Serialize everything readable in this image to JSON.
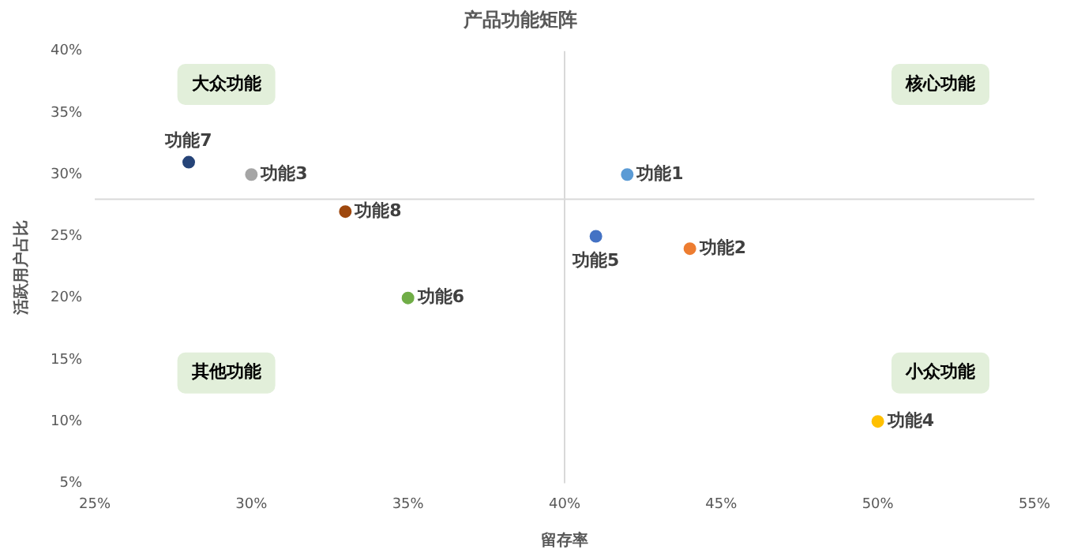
{
  "chart_data": {
    "type": "scatter",
    "title": "产品功能矩阵",
    "xlabel": "留存率",
    "ylabel": "活跃用户占比",
    "xlim": [
      25,
      55
    ],
    "xticks": [
      {
        "value": 25,
        "label": "25%"
      },
      {
        "value": 30,
        "label": "30%"
      },
      {
        "value": 35,
        "label": "35%"
      },
      {
        "value": 40,
        "label": "40%"
      },
      {
        "value": 45,
        "label": "45%"
      },
      {
        "value": 50,
        "label": "50%"
      },
      {
        "value": 55,
        "label": "55%"
      }
    ],
    "ylim": [
      5,
      40
    ],
    "yticks": [
      {
        "value": 5,
        "label": "5%"
      },
      {
        "value": 10,
        "label": "10%"
      },
      {
        "value": 15,
        "label": "15%"
      },
      {
        "value": 20,
        "label": "20%"
      },
      {
        "value": 25,
        "label": "25%"
      },
      {
        "value": 30,
        "label": "30%"
      },
      {
        "value": 35,
        "label": "35%"
      },
      {
        "value": 40,
        "label": "40%"
      }
    ],
    "grid": false,
    "legend": false,
    "marker": "circle",
    "ref_lines": [
      {
        "axis": "x",
        "value": 40,
        "color": "#d9d9d9"
      },
      {
        "axis": "y",
        "value": 28,
        "color": "#d9d9d9"
      }
    ],
    "annotations": [
      "大众功能",
      "核心功能",
      "其他功能",
      "小众功能"
    ],
    "series": [
      {
        "name": "功能1",
        "color": "#5b9bd5",
        "x": [
          42
        ],
        "values": [
          30
        ]
      },
      {
        "name": "功能2",
        "color": "#ed7d31",
        "x": [
          44
        ],
        "values": [
          24
        ]
      },
      {
        "name": "功能3",
        "color": "#a5a5a5",
        "x": [
          30
        ],
        "values": [
          30
        ]
      },
      {
        "name": "功能4",
        "color": "#ffc000",
        "x": [
          50
        ],
        "values": [
          10
        ]
      },
      {
        "name": "功能5",
        "color": "#4472c4",
        "x": [
          41
        ],
        "values": [
          25
        ]
      },
      {
        "name": "功能6",
        "color": "#70ad47",
        "x": [
          35
        ],
        "values": [
          20
        ]
      },
      {
        "name": "功能7",
        "color": "#264478",
        "x": [
          28
        ],
        "values": [
          31
        ]
      },
      {
        "name": "功能8",
        "color": "#9e480e",
        "x": [
          33
        ],
        "values": [
          27
        ]
      }
    ]
  }
}
